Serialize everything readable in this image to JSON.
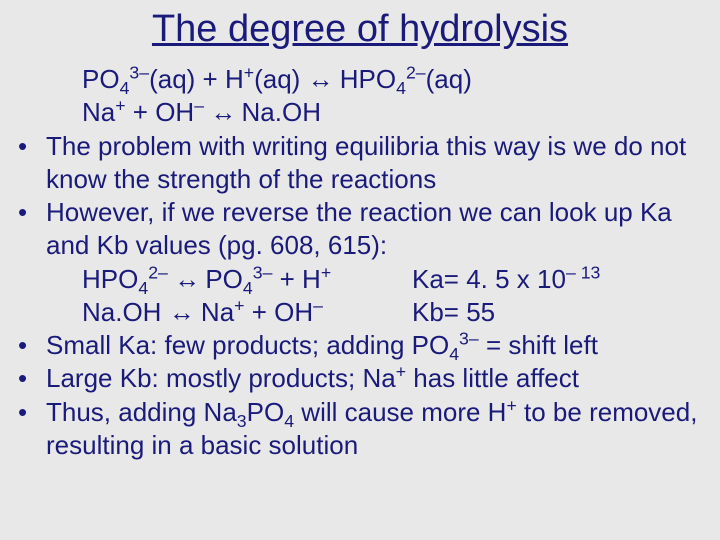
{
  "colors": {
    "background": "#e8e8e8",
    "text": "#1a1a7a"
  },
  "typography": {
    "title_fontsize": 38,
    "body_fontsize": 26,
    "font_family": "Arial"
  },
  "title": "The degree of hydrolysis",
  "eq1": {
    "a": "PO",
    "a_sub": "4",
    "a_sup": "3–",
    "a_tail": "(aq) + H",
    "b_sup": "+",
    "b_tail": "(aq) ",
    "arrow": "↔",
    "c": " HPO",
    "c_sub": "4",
    "c_sup": "2–",
    "c_tail": "(aq)"
  },
  "eq2": {
    "a": "Na",
    "a_sup": "+",
    "b": " + OH",
    "b_sup": "–",
    "arrow": " ↔ ",
    "c": "Na.OH"
  },
  "bullet1": "The problem with writing equilibria this way is we do not know the strength of the reactions",
  "bullet2": "However, if we reverse the reaction we can look up Ka and Kb values (pg. 608, 615):",
  "eq3": {
    "left_a": "HPO",
    "left_a_sub": "4",
    "left_a_sup": "2–",
    "arrow": " ↔ ",
    "left_b": "PO",
    "left_b_sub": "4",
    "left_b_sup": "3–",
    "left_c": " + H",
    "left_c_sup": "+",
    "right_a": "Ka= 4. 5 x 10",
    "right_a_sup": "– 13"
  },
  "eq4": {
    "left_a": "Na.OH ",
    "arrow": "↔",
    "left_b": " Na",
    "left_b_sup": "+",
    "left_c": " + OH",
    "left_c_sup": "–",
    "right": "Kb= 55"
  },
  "bullet3": {
    "a": "Small Ka: few products; adding PO",
    "sub": "4",
    "sup": "3–",
    "b": " = shift left"
  },
  "bullet4": {
    "a": "Large Kb: mostly products; Na",
    "sup": "+",
    "b": " has little affect"
  },
  "bullet5": {
    "a": "Thus, adding Na",
    "sub": "3",
    "b": "PO",
    "sub2": "4",
    "c": " will cause more H",
    "sup": "+",
    "d": " to be removed, resulting in a basic solution"
  },
  "bullet_char": "•"
}
